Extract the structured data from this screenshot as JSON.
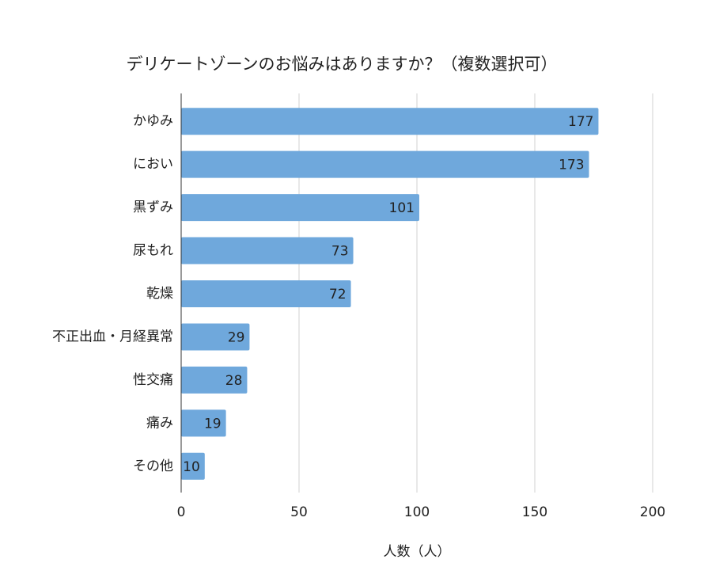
{
  "chart_data": {
    "type": "bar",
    "orientation": "horizontal",
    "title": "デリケートゾーンのお悩みはありますか？（複数選択可）",
    "x_label": "人数（人）",
    "categories": [
      "かゆみ",
      "におい",
      "黒ずみ",
      "尿もれ",
      "乾燥",
      "不正出血・月経異常",
      "性交痛",
      "痛み",
      "その他"
    ],
    "values": [
      177,
      173,
      101,
      73,
      72,
      29,
      28,
      19,
      10
    ],
    "color": "#6fa8dc",
    "xlim": [
      0,
      200
    ],
    "xticks": [
      0,
      50,
      100,
      150,
      200
    ],
    "grid": true
  }
}
